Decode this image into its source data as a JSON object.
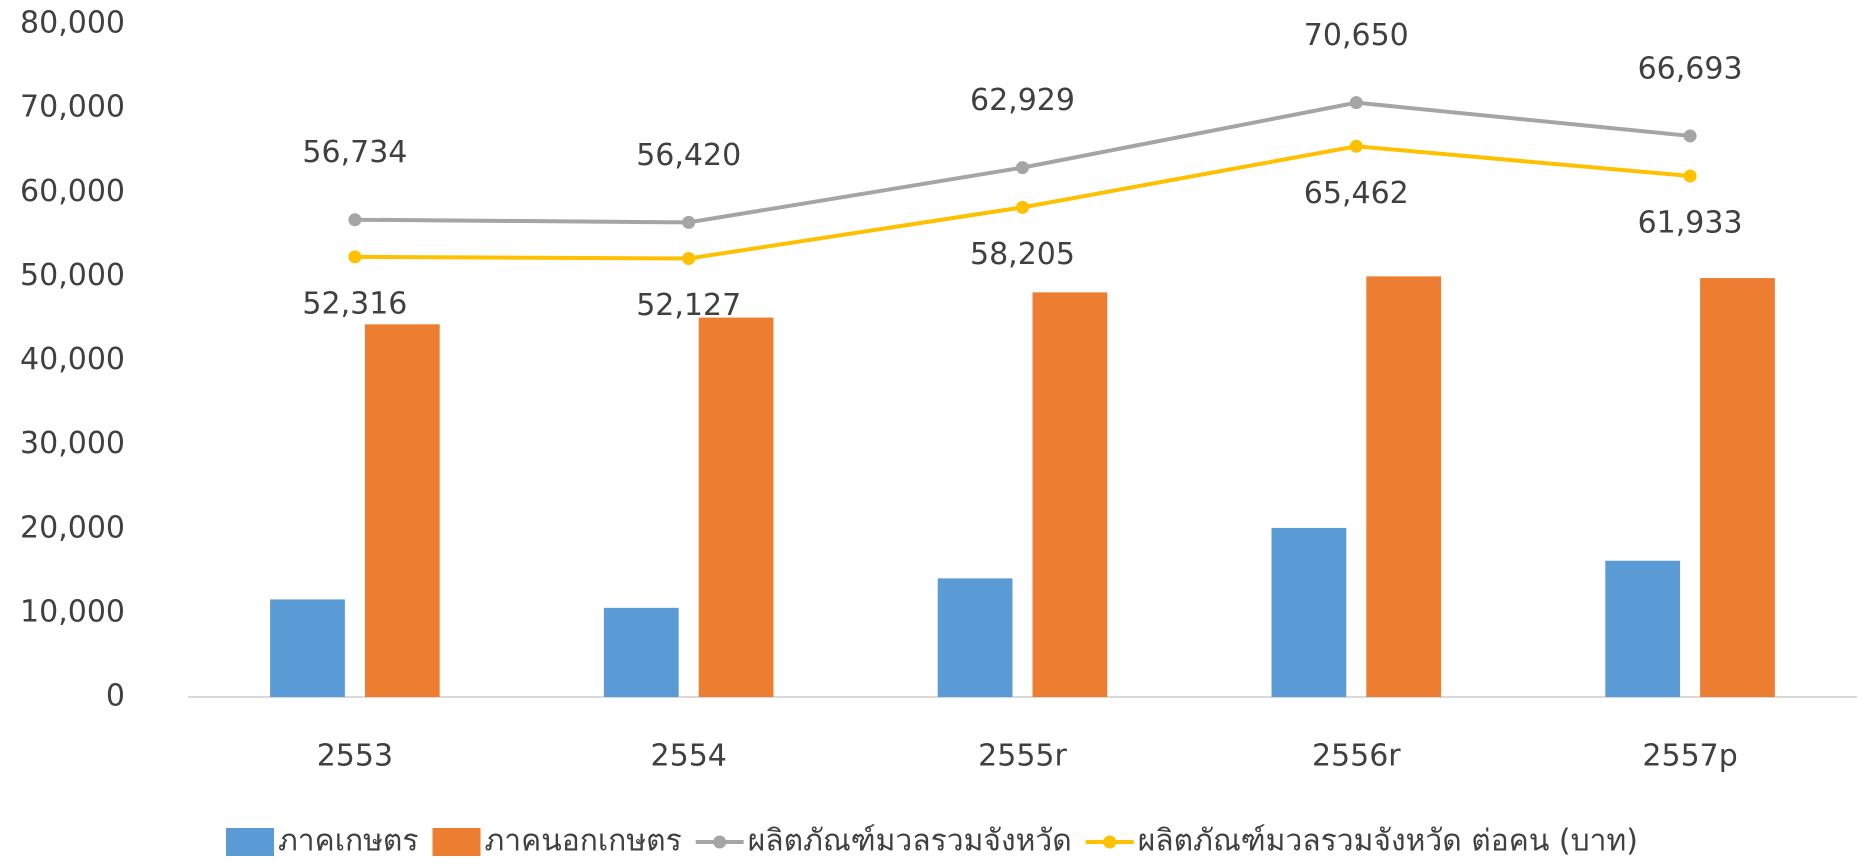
{
  "chart_data": {
    "type": "bar_line",
    "categories": [
      "2553",
      "2554",
      "2555r",
      "2556r",
      "2557p"
    ],
    "series": [
      {
        "name": "ภาคเกษตร",
        "type": "bar",
        "color": "#5b9bd5",
        "values": [
          11600,
          10600,
          14100,
          20100,
          16200
        ]
      },
      {
        "name": "ภาคนอกเกษตร",
        "type": "bar",
        "color": "#ed7d31",
        "values": [
          44300,
          45100,
          48100,
          50000,
          49800
        ]
      },
      {
        "name": "ผลิตภัณฑ์มวลรวมจังหวัด",
        "type": "line",
        "color": "#a5a5a5",
        "values": [
          56734,
          56420,
          62929,
          70650,
          66693
        ],
        "value_labels": [
          "56,734",
          "56,420",
          "62,929",
          "70,650",
          "66,693"
        ]
      },
      {
        "name": "ผลิตภัณฑ์มวลรวมจังหวัด ต่อคน (บาท)",
        "type": "line",
        "color": "#ffc000",
        "values": [
          52316,
          52127,
          58205,
          65462,
          61933
        ],
        "value_labels": [
          "52,316",
          "52,127",
          "58,205",
          "65,462",
          "61,933"
        ]
      }
    ],
    "ylim": [
      0,
      80000
    ],
    "yticks": [
      0,
      {
        "value": 10000,
        "label": "10,000"
      },
      {
        "value": 20000,
        "label": "20,000"
      },
      {
        "value": 30000,
        "label": "30,000"
      },
      {
        "value": 40000,
        "label": "40,000"
      },
      {
        "value": 50000,
        "label": "50,000"
      },
      {
        "value": 60000,
        "label": "60,000"
      },
      {
        "value": 70000,
        "label": "70,000"
      },
      {
        "value": 80000,
        "label": "80,000"
      }
    ],
    "legend": "bottom"
  }
}
